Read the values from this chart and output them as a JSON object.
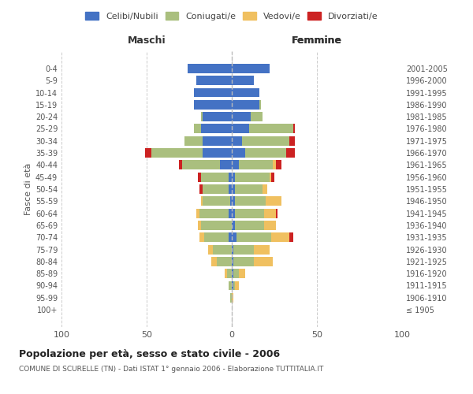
{
  "age_groups": [
    "100+",
    "95-99",
    "90-94",
    "85-89",
    "80-84",
    "75-79",
    "70-74",
    "65-69",
    "60-64",
    "55-59",
    "50-54",
    "45-49",
    "40-44",
    "35-39",
    "30-34",
    "25-29",
    "20-24",
    "15-19",
    "10-14",
    "5-9",
    "0-4"
  ],
  "birth_years": [
    "≤ 1905",
    "1906-1910",
    "1911-1915",
    "1916-1920",
    "1921-1925",
    "1926-1930",
    "1931-1935",
    "1936-1940",
    "1941-1945",
    "1946-1950",
    "1951-1955",
    "1956-1960",
    "1961-1965",
    "1966-1970",
    "1971-1975",
    "1976-1980",
    "1981-1985",
    "1986-1990",
    "1991-1995",
    "1996-2000",
    "2001-2005"
  ],
  "male": {
    "celibe": [
      0,
      0,
      0,
      0,
      0,
      0,
      2,
      0,
      2,
      1,
      2,
      2,
      7,
      17,
      17,
      18,
      17,
      22,
      22,
      21,
      26
    ],
    "coniugato": [
      0,
      1,
      2,
      3,
      9,
      11,
      14,
      18,
      17,
      16,
      15,
      16,
      22,
      30,
      11,
      4,
      1,
      0,
      0,
      0,
      0
    ],
    "vedovo": [
      0,
      0,
      0,
      1,
      3,
      3,
      3,
      2,
      2,
      1,
      0,
      0,
      0,
      0,
      0,
      0,
      0,
      0,
      0,
      0,
      0
    ],
    "divorziato": [
      0,
      0,
      0,
      0,
      0,
      0,
      0,
      0,
      0,
      0,
      2,
      2,
      2,
      4,
      0,
      0,
      0,
      0,
      0,
      0,
      0
    ]
  },
  "female": {
    "nubile": [
      0,
      0,
      1,
      1,
      1,
      1,
      3,
      2,
      2,
      2,
      2,
      2,
      4,
      8,
      6,
      10,
      11,
      16,
      16,
      13,
      22
    ],
    "coniugata": [
      0,
      0,
      1,
      3,
      12,
      12,
      20,
      17,
      17,
      18,
      16,
      20,
      20,
      24,
      28,
      26,
      7,
      1,
      0,
      0,
      0
    ],
    "vedova": [
      0,
      1,
      2,
      4,
      11,
      9,
      11,
      7,
      7,
      9,
      3,
      1,
      2,
      0,
      0,
      0,
      0,
      0,
      0,
      0,
      0
    ],
    "divorziata": [
      0,
      0,
      0,
      0,
      0,
      0,
      2,
      0,
      1,
      0,
      0,
      2,
      3,
      5,
      3,
      1,
      0,
      0,
      0,
      0,
      0
    ]
  },
  "colors": {
    "celibe_nubile": "#4472C4",
    "coniugato_coniugata": "#AABF7E",
    "vedovo_vedova": "#F0C060",
    "divorziato_divorziata": "#CC2222"
  },
  "xlim": [
    -100,
    100
  ],
  "xticks": [
    -100,
    -50,
    0,
    50,
    100
  ],
  "xticklabels": [
    "100",
    "50",
    "0",
    "50",
    "100"
  ],
  "title": "Popolazione per età, sesso e stato civile - 2006",
  "subtitle": "COMUNE DI SCURELLE (TN) - Dati ISTAT 1° gennaio 2006 - Elaborazione TUTTITALIA.IT",
  "ylabel_left": "Fasce di età",
  "legend_labels": [
    "Celibi/Nubili",
    "Coniugati/e",
    "Vedovi/e",
    "Divorziati/e"
  ],
  "maschi_label": "Maschi",
  "femmine_label": "Femmine",
  "background_color": "#ffffff",
  "grid_color": "#cccccc"
}
